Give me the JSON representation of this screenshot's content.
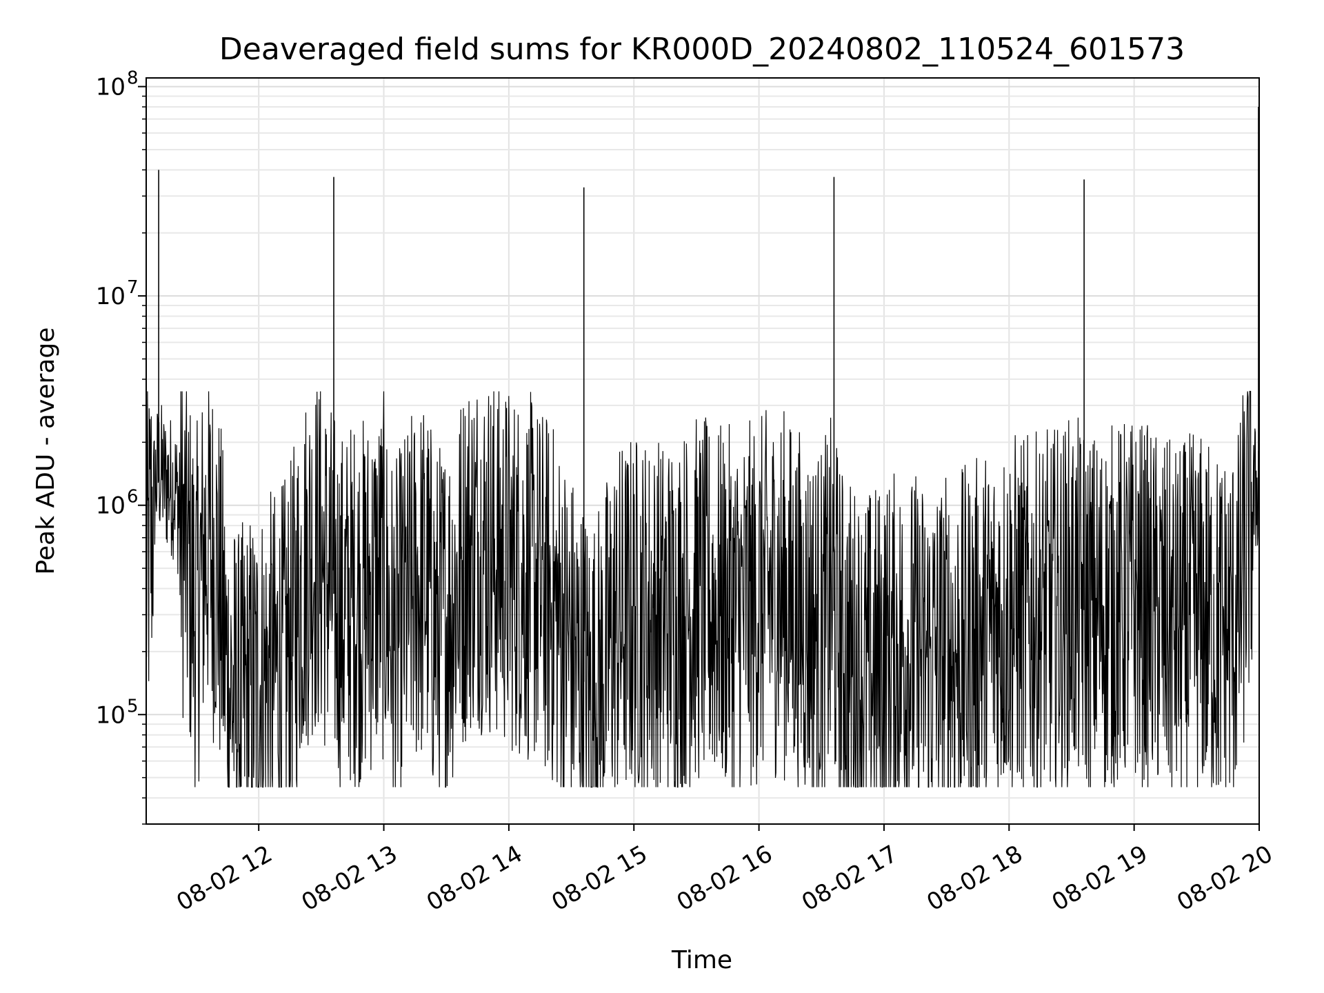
{
  "chart_data": {
    "type": "line",
    "title": "Deaveraged field sums for KR000D_20240802_110524_601573",
    "xlabel": "Time",
    "ylabel": "Peak ADU - average",
    "y_scale": "log",
    "ylim": [
      30000,
      110000000
    ],
    "xlim": [
      "2024-08-02 11:06",
      "2024-08-02 20:00"
    ],
    "grid": true,
    "line_color": "#000000",
    "x_ticks": [
      {
        "label": "08-02 12",
        "time": "2024-08-02 12:00"
      },
      {
        "label": "08-02 13",
        "time": "2024-08-02 13:00"
      },
      {
        "label": "08-02 14",
        "time": "2024-08-02 14:00"
      },
      {
        "label": "08-02 15",
        "time": "2024-08-02 15:00"
      },
      {
        "label": "08-02 16",
        "time": "2024-08-02 16:00"
      },
      {
        "label": "08-02 17",
        "time": "2024-08-02 17:00"
      },
      {
        "label": "08-02 18",
        "time": "2024-08-02 18:00"
      },
      {
        "label": "08-02 19",
        "time": "2024-08-02 19:00"
      },
      {
        "label": "08-02 20",
        "time": "2024-08-02 20:00"
      }
    ],
    "y_ticks": [
      {
        "base": "10",
        "exp": "5",
        "value": 100000
      },
      {
        "base": "10",
        "exp": "6",
        "value": 1000000
      },
      {
        "base": "10",
        "exp": "7",
        "value": 10000000
      },
      {
        "base": "10",
        "exp": "8",
        "value": 100000000
      }
    ],
    "series": [
      {
        "time": [
          "2024-08-02 11:06",
          "2024-08-02 11:10",
          "2024-08-02 11:12",
          "2024-08-02 11:15",
          "2024-08-02 11:20",
          "2024-08-02 11:25",
          "2024-08-02 11:30",
          "2024-08-02 11:35",
          "2024-08-02 11:40",
          "2024-08-02 11:45",
          "2024-08-02 11:50",
          "2024-08-02 11:55",
          "2024-08-02 12:00",
          "2024-08-02 12:05",
          "2024-08-02 12:10",
          "2024-08-02 12:15",
          "2024-08-02 12:20",
          "2024-08-02 12:25",
          "2024-08-02 12:30",
          "2024-08-02 12:35",
          "2024-08-02 12:40",
          "2024-08-02 12:45",
          "2024-08-02 12:50",
          "2024-08-02 12:55",
          "2024-08-02 13:00",
          "2024-08-02 13:05",
          "2024-08-02 13:10",
          "2024-08-02 13:15",
          "2024-08-02 13:20",
          "2024-08-02 13:25",
          "2024-08-02 13:30",
          "2024-08-02 13:35",
          "2024-08-02 13:40",
          "2024-08-02 13:45",
          "2024-08-02 13:50",
          "2024-08-02 13:55",
          "2024-08-02 14:00",
          "2024-08-02 14:10",
          "2024-08-02 14:20",
          "2024-08-02 14:30",
          "2024-08-02 14:35",
          "2024-08-02 14:40",
          "2024-08-02 14:45",
          "2024-08-02 14:50",
          "2024-08-02 15:00",
          "2024-08-02 15:10",
          "2024-08-02 15:20",
          "2024-08-02 15:30",
          "2024-08-02 15:40",
          "2024-08-02 15:50",
          "2024-08-02 16:00",
          "2024-08-02 16:10",
          "2024-08-02 16:20",
          "2024-08-02 16:30",
          "2024-08-02 16:35",
          "2024-08-02 16:40",
          "2024-08-02 16:50",
          "2024-08-02 17:00",
          "2024-08-02 17:10",
          "2024-08-02 17:20",
          "2024-08-02 17:30",
          "2024-08-02 17:40",
          "2024-08-02 17:50",
          "2024-08-02 18:00",
          "2024-08-02 18:10",
          "2024-08-02 18:20",
          "2024-08-02 18:30",
          "2024-08-02 18:35",
          "2024-08-02 18:40",
          "2024-08-02 18:50",
          "2024-08-02 19:00",
          "2024-08-02 19:10",
          "2024-08-02 19:20",
          "2024-08-02 19:30",
          "2024-08-02 19:40",
          "2024-08-02 19:45",
          "2024-08-02 19:50",
          "2024-08-02 19:55",
          "2024-08-02 20:00"
        ],
        "values": [
          400000,
          1200000,
          1500000,
          1300000,
          1200000,
          600000,
          300000,
          700000,
          500000,
          150000,
          100000,
          120000,
          140000,
          150000,
          160000,
          200000,
          400000,
          600000,
          550000,
          400000,
          300000,
          350000,
          350000,
          400000,
          450000,
          200000,
          300000,
          400000,
          450000,
          250000,
          300000,
          400000,
          600000,
          650000,
          600000,
          550000,
          500000,
          450000,
          350000,
          200000,
          150000,
          120000,
          150000,
          250000,
          300000,
          280000,
          300000,
          350000,
          320000,
          300000,
          350000,
          400000,
          300000,
          250000,
          350000,
          200000,
          150000,
          180000,
          200000,
          180000,
          190000,
          200000,
          250000,
          300000,
          280000,
          300000,
          350000,
          320000,
          300000,
          320000,
          350000,
          300000,
          250000,
          300000,
          250000,
          250000,
          300000,
          800000,
          1400000
        ]
      }
    ],
    "spikes": [
      {
        "time": "2024-08-02 11:12",
        "value": 40000000
      },
      {
        "time": "2024-08-02 12:36",
        "value": 37000000
      },
      {
        "time": "2024-08-02 14:36",
        "value": 33000000
      },
      {
        "time": "2024-08-02 16:36",
        "value": 37000000
      },
      {
        "time": "2024-08-02 18:36",
        "value": 36000000
      },
      {
        "time": "2024-08-02 20:00",
        "value": 80000000
      }
    ]
  }
}
